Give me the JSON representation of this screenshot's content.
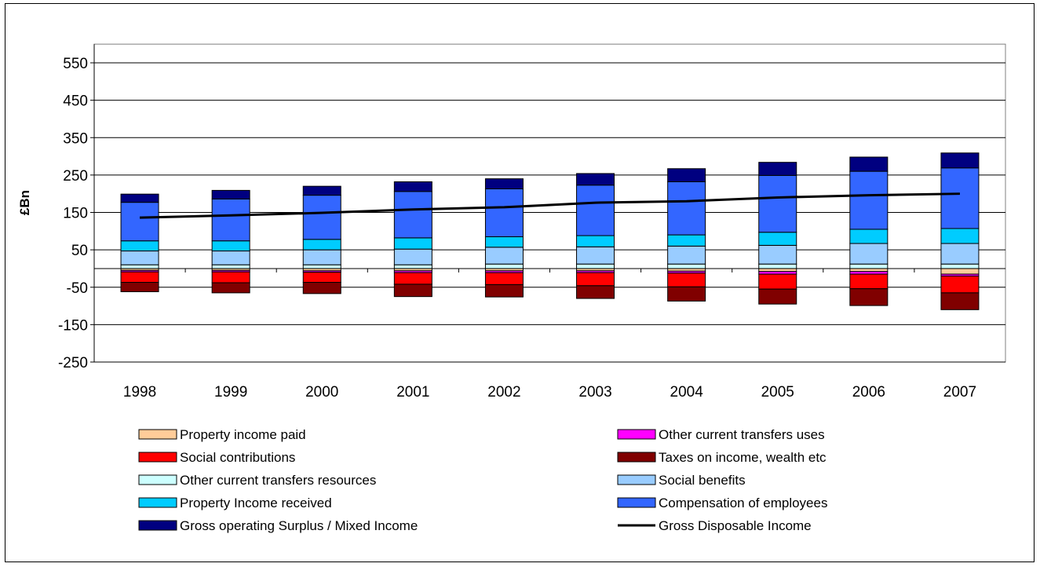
{
  "chart_data": {
    "type": "bar",
    "stacked": true,
    "title": "",
    "xlabel": "",
    "ylabel": "£Bn",
    "ylim": [
      -250,
      600
    ],
    "yticks": [
      550,
      450,
      350,
      250,
      150,
      50,
      -50,
      -150,
      -250
    ],
    "grid": true,
    "legend_position": "bottom",
    "categories": [
      "1998",
      "1999",
      "2000",
      "2001",
      "2002",
      "2003",
      "2004",
      "2005",
      "2006",
      "2007"
    ],
    "series": [
      {
        "name": "Property income paid",
        "kind": "bar",
        "color": "#FFCC99",
        "values": [
          -5,
          -5,
          -6,
          -6,
          -6,
          -6,
          -7,
          -8,
          -8,
          -15
        ]
      },
      {
        "name": "Other current transfers uses",
        "kind": "bar",
        "color": "#FF00FF",
        "values": [
          -4,
          -4,
          -4,
          -5,
          -5,
          -5,
          -5,
          -7,
          -7,
          -5
        ]
      },
      {
        "name": "Social contributions",
        "kind": "bar",
        "color": "#FF0000",
        "values": [
          -28,
          -29,
          -27,
          -31,
          -32,
          -35,
          -37,
          -40,
          -39,
          -45
        ]
      },
      {
        "name": "Taxes on income, wealth etc",
        "kind": "bar",
        "color": "#800000",
        "values": [
          -25,
          -27,
          -30,
          -33,
          -33,
          -34,
          -38,
          -40,
          -45,
          -45
        ]
      },
      {
        "name": "Other current transfers resources",
        "kind": "bar",
        "color": "#CCFFFF",
        "values": [
          10,
          10,
          10,
          10,
          12,
          12,
          12,
          12,
          12,
          12
        ]
      },
      {
        "name": "Social benefits",
        "kind": "bar",
        "color": "#99CCFF",
        "values": [
          37,
          37,
          40,
          42,
          45,
          46,
          48,
          50,
          55,
          55
        ]
      },
      {
        "name": "Property Income received",
        "kind": "bar",
        "color": "#00CCFF",
        "values": [
          27,
          27,
          28,
          30,
          28,
          30,
          30,
          35,
          38,
          40
        ]
      },
      {
        "name": "Compensation of employees",
        "kind": "bar",
        "color": "#3366FF",
        "values": [
          103,
          112,
          118,
          124,
          128,
          135,
          142,
          152,
          155,
          162
        ]
      },
      {
        "name": "Gross operating Surplus / Mixed Income",
        "kind": "bar",
        "color": "#000080",
        "values": [
          22,
          23,
          24,
          26,
          27,
          31,
          35,
          35,
          38,
          40
        ]
      },
      {
        "name": "Gross Disposable Income",
        "kind": "line",
        "color": "#000000",
        "values": [
          136,
          142,
          149,
          158,
          164,
          176,
          180,
          190,
          196,
          200
        ]
      }
    ]
  }
}
